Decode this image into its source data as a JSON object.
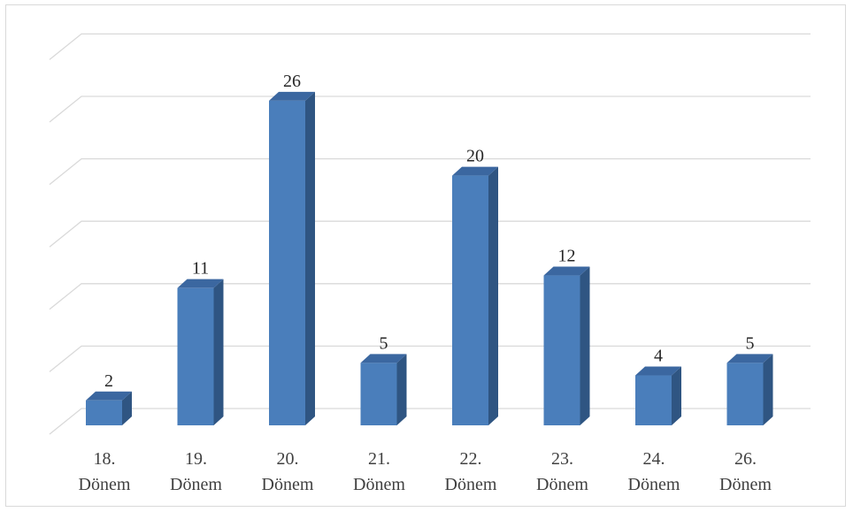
{
  "chart_data": {
    "type": "bar",
    "style": "3d-column",
    "categories": [
      [
        "18.",
        "Dönem"
      ],
      [
        "19.",
        "Dönem"
      ],
      [
        "20.",
        "Dönem"
      ],
      [
        "21.",
        "Dönem"
      ],
      [
        "22.",
        "Dönem"
      ],
      [
        "23.",
        "Dönem"
      ],
      [
        "24.",
        "Dönem"
      ],
      [
        "26.",
        "Dönem"
      ]
    ],
    "values": [
      2,
      11,
      26,
      5,
      20,
      12,
      4,
      5
    ],
    "data_labels": [
      "2",
      "11",
      "26",
      "5",
      "20",
      "12",
      "4",
      "5"
    ],
    "ylim": [
      0,
      30
    ],
    "gridlines": true,
    "y_axis_labels_visible": false,
    "legend": "none",
    "colors": {
      "bar_front": "#4a7ebb",
      "bar_side": "#2f5582",
      "bar_top": "#3b67a0",
      "gridline": "#d9d9d9",
      "border": "#d9d9d9"
    }
  }
}
